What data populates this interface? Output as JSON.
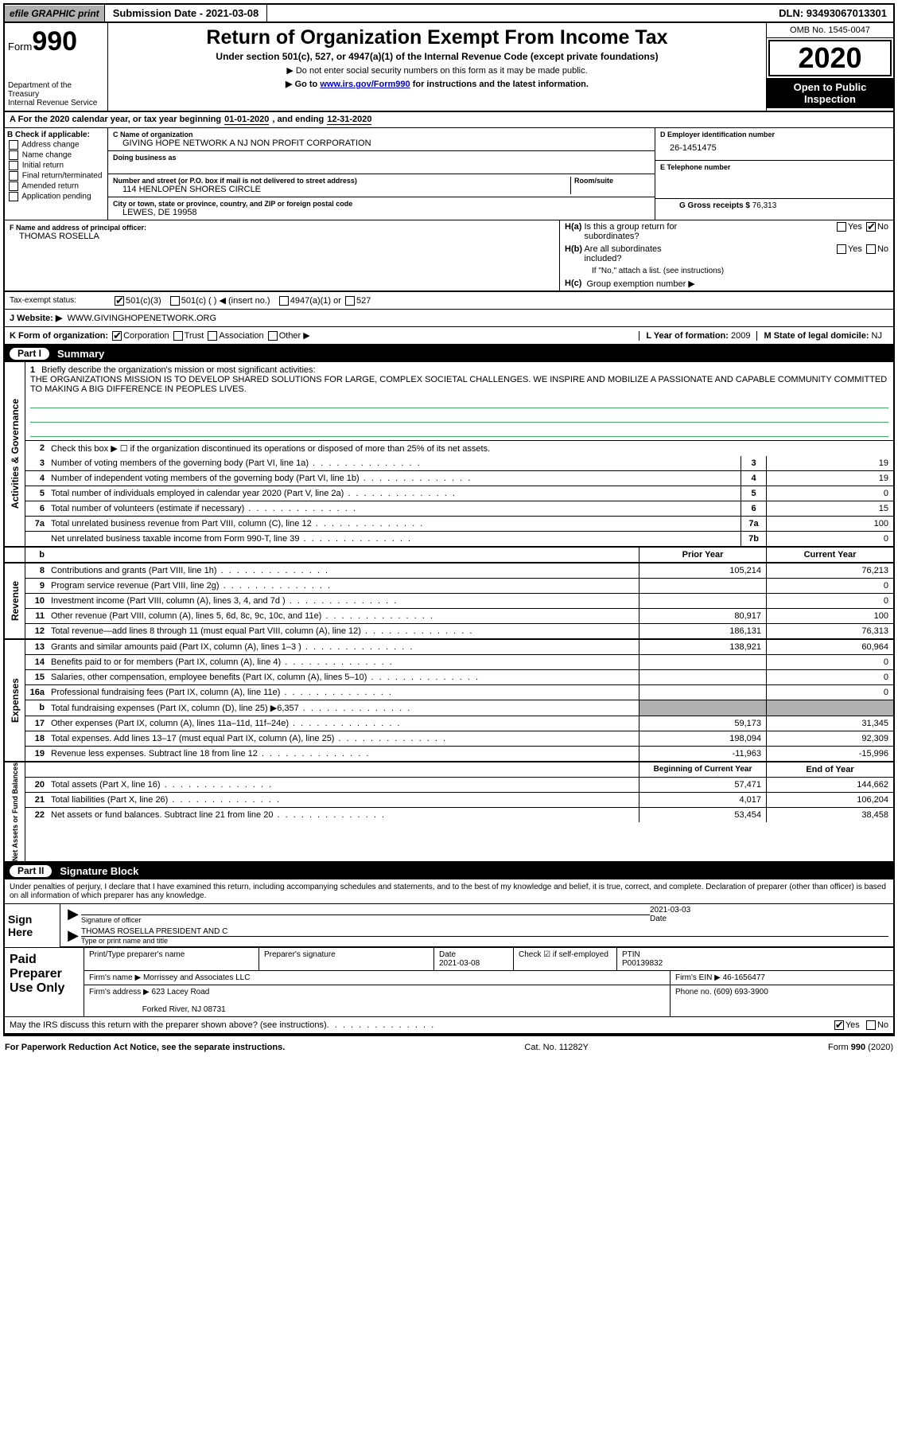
{
  "topbar": {
    "efile": "efile GRAPHIC print",
    "submission": "Submission Date - 2021-03-08",
    "dln": "DLN: 93493067013301"
  },
  "header": {
    "form_prefix": "Form",
    "form_number": "990",
    "dept1": "Department of the Treasury",
    "dept2": "Internal Revenue Service",
    "title": "Return of Organization Exempt From Income Tax",
    "sub1": "Under section 501(c), 527, or 4947(a)(1) of the Internal Revenue Code (except private foundations)",
    "sub2": "▶ Do not enter social security numbers on this form as it may be made public.",
    "sub3_pre": "▶ Go to ",
    "sub3_link": "www.irs.gov/Form990",
    "sub3_post": " for instructions and the latest information.",
    "omb": "OMB No. 1545-0047",
    "year": "2020",
    "inspection": "Open to Public Inspection"
  },
  "lineA": {
    "pre": "A For the 2020 calendar year, or tax year beginning ",
    "begin": "01-01-2020",
    "mid": " , and ending ",
    "end": "12-31-2020"
  },
  "boxB": {
    "label": "B Check if applicable:",
    "opts": [
      "Address change",
      "Name change",
      "Initial return",
      "Final return/terminated",
      "Amended return",
      "Application pending"
    ]
  },
  "boxC": {
    "name_label": "C Name of organization",
    "name": "GIVING HOPE NETWORK A NJ NON PROFIT CORPORATION",
    "dba_label": "Doing business as",
    "addr_label": "Number and street (or P.O. box if mail is not delivered to street address)",
    "room_label": "Room/suite",
    "addr": "114 HENLOPEN SHORES CIRCLE",
    "city_label": "City or town, state or province, country, and ZIP or foreign postal code",
    "city": "LEWES, DE  19958"
  },
  "boxD": {
    "label": "D Employer identification number",
    "val": "26-1451475"
  },
  "boxE": {
    "label": "E Telephone number",
    "val": ""
  },
  "boxG": {
    "label": "G Gross receipts $ ",
    "val": "76,313"
  },
  "boxF": {
    "label": "F  Name and address of principal officer:",
    "val": "THOMAS ROSELLA"
  },
  "boxH": {
    "ha": "H(a)  Is this a group return for subordinates?",
    "hb": "H(b)  Are all subordinates included?",
    "hb_note": "If \"No,\" attach a list. (see instructions)",
    "hc": "H(c)  Group exemption number ▶",
    "yes": "Yes",
    "no": "No"
  },
  "taxStatus": {
    "label": "Tax-exempt status:",
    "o1": "501(c)(3)",
    "o2": "501(c) (  ) ◀ (insert no.)",
    "o3": "4947(a)(1) or",
    "o4": "527"
  },
  "website": {
    "label": "J   Website: ▶",
    "val": "WWW.GIVINGHOPENETWORK.ORG"
  },
  "lineK": {
    "label": "K Form of organization:",
    "o1": "Corporation",
    "o2": "Trust",
    "o3": "Association",
    "o4": "Other ▶"
  },
  "lineL": {
    "label": "L Year of formation: ",
    "val": "2009"
  },
  "lineM": {
    "label": "M State of legal domicile: ",
    "val": "NJ"
  },
  "part1": {
    "num": "Part I",
    "title": "Summary"
  },
  "mission": {
    "num": "1",
    "label": "Briefly describe the organization's mission or most significant activities:",
    "text": "THE ORGANIZATIONS MISSION IS TO DEVELOP SHARED SOLUTIONS FOR LARGE, COMPLEX SOCIETAL CHALLENGES. WE INSPIRE AND MOBILIZE A PASSIONATE AND CAPABLE COMMUNITY COMMITTED TO MAKING A BIG DIFFERENCE IN PEOPLES LIVES."
  },
  "governance": {
    "tab": "Activities & Governance",
    "l2": "Check this box ▶ ☐ if the organization discontinued its operations or disposed of more than 25% of its net assets.",
    "rows": [
      {
        "n": "3",
        "d": "Number of voting members of the governing body (Part VI, line 1a)",
        "c": "3",
        "v": "19"
      },
      {
        "n": "4",
        "d": "Number of independent voting members of the governing body (Part VI, line 1b)",
        "c": "4",
        "v": "19"
      },
      {
        "n": "5",
        "d": "Total number of individuals employed in calendar year 2020 (Part V, line 2a)",
        "c": "5",
        "v": "0"
      },
      {
        "n": "6",
        "d": "Total number of volunteers (estimate if necessary)",
        "c": "6",
        "v": "15"
      },
      {
        "n": "7a",
        "d": "Total unrelated business revenue from Part VIII, column (C), line 12",
        "c": "7a",
        "v": "100"
      },
      {
        "n": "",
        "d": "Net unrelated business taxable income from Form 990-T, line 39",
        "c": "7b",
        "v": "0"
      }
    ]
  },
  "revExp": {
    "prior": "Prior Year",
    "current": "Current Year",
    "revenue_tab": "Revenue",
    "revenue": [
      {
        "n": "8",
        "d": "Contributions and grants (Part VIII, line 1h)",
        "p": "105,214",
        "c": "76,213"
      },
      {
        "n": "9",
        "d": "Program service revenue (Part VIII, line 2g)",
        "p": "",
        "c": "0"
      },
      {
        "n": "10",
        "d": "Investment income (Part VIII, column (A), lines 3, 4, and 7d )",
        "p": "",
        "c": "0"
      },
      {
        "n": "11",
        "d": "Other revenue (Part VIII, column (A), lines 5, 6d, 8c, 9c, 10c, and 11e)",
        "p": "80,917",
        "c": "100"
      },
      {
        "n": "12",
        "d": "Total revenue—add lines 8 through 11 (must equal Part VIII, column (A), line 12)",
        "p": "186,131",
        "c": "76,313"
      }
    ],
    "expenses_tab": "Expenses",
    "expenses": [
      {
        "n": "13",
        "d": "Grants and similar amounts paid (Part IX, column (A), lines 1–3 )",
        "p": "138,921",
        "c": "60,964"
      },
      {
        "n": "14",
        "d": "Benefits paid to or for members (Part IX, column (A), line 4)",
        "p": "",
        "c": "0"
      },
      {
        "n": "15",
        "d": "Salaries, other compensation, employee benefits (Part IX, column (A), lines 5–10)",
        "p": "",
        "c": "0"
      },
      {
        "n": "16a",
        "d": "Professional fundraising fees (Part IX, column (A), line 11e)",
        "p": "",
        "c": "0"
      },
      {
        "n": "b",
        "d": "Total fundraising expenses (Part IX, column (D), line 25) ▶6,357",
        "p": "shaded",
        "c": "shaded"
      },
      {
        "n": "17",
        "d": "Other expenses (Part IX, column (A), lines 11a–11d, 11f–24e)",
        "p": "59,173",
        "c": "31,345"
      },
      {
        "n": "18",
        "d": "Total expenses. Add lines 13–17 (must equal Part IX, column (A), line 25)",
        "p": "198,094",
        "c": "92,309"
      },
      {
        "n": "19",
        "d": "Revenue less expenses. Subtract line 18 from line 12",
        "p": "-11,963",
        "c": "-15,996"
      }
    ],
    "netassets_tab": "Net Assets or Fund Balances",
    "na_begin": "Beginning of Current Year",
    "na_end": "End of Year",
    "netassets": [
      {
        "n": "20",
        "d": "Total assets (Part X, line 16)",
        "p": "57,471",
        "c": "144,662"
      },
      {
        "n": "21",
        "d": "Total liabilities (Part X, line 26)",
        "p": "4,017",
        "c": "106,204"
      },
      {
        "n": "22",
        "d": "Net assets or fund balances. Subtract line 21 from line 20",
        "p": "53,454",
        "c": "38,458"
      }
    ]
  },
  "part2": {
    "num": "Part II",
    "title": "Signature Block"
  },
  "sig": {
    "penalties": "Under penalties of perjury, I declare that I have examined this return, including accompanying schedules and statements, and to the best of my knowledge and belief, it is true, correct, and complete. Declaration of preparer (other than officer) is based on all information of which preparer has any knowledge.",
    "sign_here": "Sign Here",
    "officer_sig": "Signature of officer",
    "date_label": "Date",
    "date_val": "2021-03-03",
    "name_val": "THOMAS ROSELLA  PRESIDENT AND C",
    "name_label": "Type or print name and title"
  },
  "paid": {
    "title": "Paid Preparer Use Only",
    "h1": "Print/Type preparer's name",
    "h2": "Preparer's signature",
    "h3": "Date",
    "h3v": "2021-03-08",
    "h4": "Check ☑ if self-employed",
    "h5": "PTIN",
    "h5v": "P00139832",
    "firm_name_l": "Firm's name    ▶",
    "firm_name": "Morrissey and Associates LLC",
    "firm_ein_l": "Firm's EIN ▶ ",
    "firm_ein": "46-1656477",
    "firm_addr_l": "Firm's address ▶",
    "firm_addr1": "623 Lacey Road",
    "firm_addr2": "Forked River, NJ  08731",
    "phone_l": "Phone no. ",
    "phone": "(609) 693-3900"
  },
  "discuss": {
    "text": "May the IRS discuss this return with the preparer shown above? (see instructions)",
    "yes": "Yes",
    "no": "No"
  },
  "footer": {
    "left": "For Paperwork Reduction Act Notice, see the separate instructions.",
    "mid": "Cat. No. 11282Y",
    "right": "Form 990 (2020)"
  }
}
